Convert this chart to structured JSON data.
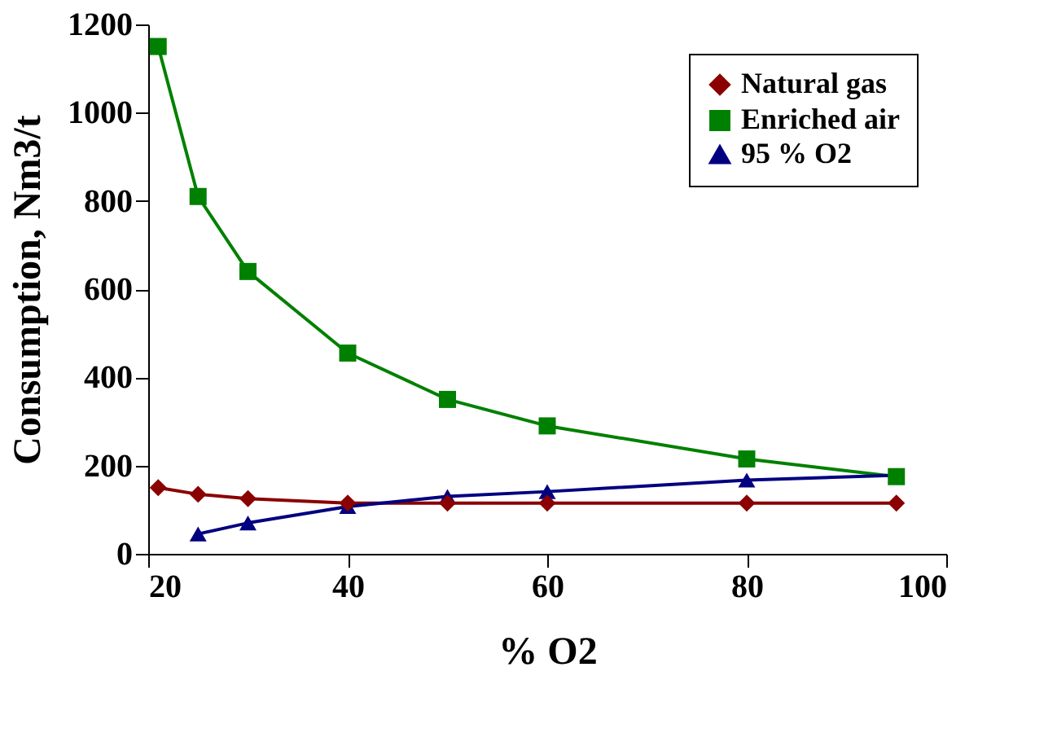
{
  "chart_data": {
    "type": "line",
    "xlabel": "% O2",
    "ylabel": "Consumption, Nm3/t",
    "x": [
      21,
      25,
      30,
      40,
      50,
      60,
      80,
      95
    ],
    "series": [
      {
        "name": "Natural gas",
        "color": "#8b0000",
        "marker": "diamond",
        "values": [
          150,
          135,
          125,
          115,
          115,
          115,
          115,
          115
        ]
      },
      {
        "name": "Enriched air",
        "color": "#008000",
        "marker": "square",
        "values": [
          1150,
          810,
          640,
          455,
          350,
          290,
          215,
          175
        ]
      },
      {
        "name": "95 % O2",
        "color": "#000080",
        "marker": "triangle",
        "values": [
          null,
          45,
          70,
          107,
          130,
          141,
          167,
          178
        ]
      }
    ],
    "xlim": [
      20,
      100
    ],
    "xticks": [
      20,
      40,
      60,
      80,
      100
    ],
    "ylim": [
      0,
      1200
    ],
    "yticks": [
      0,
      200,
      400,
      600,
      800,
      1000,
      1200
    ],
    "grid": false,
    "legend": "top right"
  }
}
